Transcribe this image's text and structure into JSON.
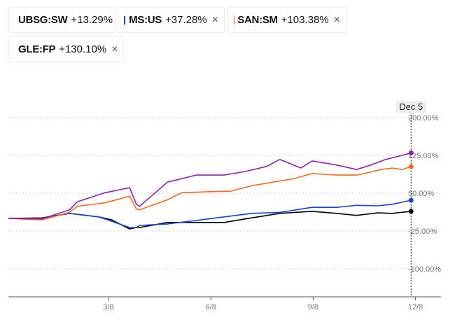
{
  "legend": [
    {
      "ticker": "UBSG:SW",
      "change": "+13.29%",
      "color": "#000000",
      "removable": false
    },
    {
      "ticker": "MS:US",
      "change": "+37.28%",
      "color": "#1a3fe0",
      "removable": true
    },
    {
      "ticker": "SAN:SM",
      "change": "+103.38%",
      "color": "#f26b1d",
      "removable": true
    },
    {
      "ticker": "GLE:FP",
      "change": "+130.10%",
      "color": "#8b21b5",
      "removable": true
    }
  ],
  "close_glyph": "×",
  "chart_data": {
    "type": "line",
    "title": "",
    "xlabel": "",
    "ylabel": "",
    "x_unit": "days since 12/8 of prior year",
    "xlim": [
      0,
      372
    ],
    "ylim": [
      -130,
      210
    ],
    "yticks": [
      200,
      125,
      50,
      -25,
      -100
    ],
    "ytick_labels": [
      "200.00%",
      "125.00%",
      "50.00%",
      "-25.00%",
      "-100.00%"
    ],
    "xticks": [
      90,
      182,
      274,
      366
    ],
    "xtick_labels": [
      "3/8",
      "6/8",
      "9/8",
      "12/8"
    ],
    "grid": true,
    "crosshair": {
      "x": 362,
      "label": "Dec 5"
    },
    "series": [
      {
        "name": "UBSG:SW",
        "color": "#000000",
        "x": [
          0,
          30,
          55,
          81,
          93,
          109,
          115,
          118,
          143,
          169,
          194,
          213,
          244,
          273,
          295,
          313,
          332,
          345,
          362
        ],
        "y": [
          0,
          1,
          10,
          3,
          -3,
          -21,
          -18,
          -18,
          -8,
          -8,
          -8,
          -1,
          10,
          14,
          10,
          6,
          11,
          10,
          14
        ]
      },
      {
        "name": "MS:US",
        "color": "#1a3fe0",
        "x": [
          0,
          30,
          55,
          81,
          93,
          109,
          115,
          118,
          143,
          169,
          194,
          219,
          244,
          273,
          295,
          313,
          332,
          345,
          362
        ],
        "y": [
          0,
          0,
          10,
          3,
          -6,
          -18,
          -18,
          -14,
          -11,
          -4,
          3,
          10,
          12,
          22,
          22,
          26,
          25,
          28,
          36
        ]
      },
      {
        "name": "SAN:SM",
        "color": "#f26b1d",
        "x": [
          0,
          30,
          55,
          62,
          87,
          109,
          115,
          118,
          143,
          156,
          181,
          200,
          219,
          238,
          257,
          273,
          295,
          313,
          320,
          335,
          345,
          354,
          362
        ],
        "y": [
          0,
          -3,
          12,
          24,
          31,
          44,
          19,
          17,
          37,
          51,
          53,
          54,
          65,
          72,
          79,
          89,
          86,
          86,
          89,
          97,
          100,
          97,
          103
        ]
      },
      {
        "name": "GLE:FP",
        "color": "#8b21b5",
        "x": [
          0,
          30,
          55,
          62,
          87,
          109,
          115,
          118,
          143,
          169,
          194,
          213,
          232,
          244,
          263,
          273,
          295,
          313,
          326,
          339,
          354,
          362
        ],
        "y": [
          0,
          -1,
          17,
          33,
          51,
          61,
          28,
          24,
          72,
          86,
          86,
          93,
          103,
          117,
          100,
          114,
          106,
          97,
          106,
          117,
          125,
          130
        ]
      }
    ]
  }
}
